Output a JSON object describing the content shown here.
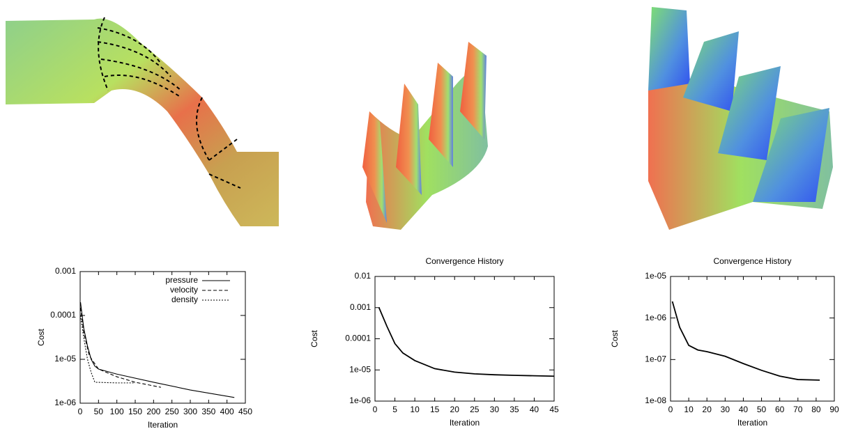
{
  "chart_data": [
    {
      "type": "line",
      "xlabel": "Iteration",
      "ylabel": "Cost",
      "log_y": true,
      "xlim": [
        0,
        450
      ],
      "xticks": [
        0,
        50,
        100,
        150,
        200,
        250,
        300,
        350,
        400,
        450
      ],
      "ylim": [
        1e-06,
        0.001
      ],
      "yticks": [
        {
          "value": 1e-06,
          "label": "1e-06"
        },
        {
          "value": 1e-05,
          "label": "1e-05"
        },
        0.0001,
        0.001
      ],
      "legend": "top-right",
      "series": [
        {
          "name": "pressure",
          "color": "#000000",
          "dash": "solid",
          "x": [
            1,
            10,
            20,
            30,
            40,
            50,
            100,
            200,
            300,
            420
          ],
          "values": [
            0.0002,
            5e-05,
            2e-05,
            1e-05,
            7e-06,
            6e-06,
            4.6e-06,
            3e-06,
            2e-06,
            1.35e-06
          ]
        },
        {
          "name": "velocity",
          "color": "#000000",
          "dash": "dashed",
          "x": [
            1,
            10,
            25,
            50,
            100,
            150,
            220
          ],
          "values": [
            0.00015,
            4e-05,
            1.2e-05,
            6e-06,
            4e-06,
            3e-06,
            2.3e-06
          ]
        },
        {
          "name": "density",
          "color": "#000000",
          "dash": "dotted",
          "x": [
            1,
            10,
            20,
            30,
            40,
            100,
            150
          ],
          "values": [
            0.0001,
            3e-05,
            1e-05,
            5e-06,
            3e-06,
            2.9e-06,
            2.9e-06
          ]
        }
      ]
    },
    {
      "type": "line",
      "title": "Convergence History",
      "xlabel": "Iteration",
      "ylabel": "Cost",
      "log_y": true,
      "xlim": [
        0,
        45
      ],
      "xticks": [
        0,
        5,
        10,
        15,
        20,
        25,
        30,
        35,
        40,
        45
      ],
      "ylim": [
        1e-06,
        0.01
      ],
      "yticks": [
        {
          "value": 1e-06,
          "label": "1e-06"
        },
        {
          "value": 1e-05,
          "label": "1e-05"
        },
        0.0001,
        0.001,
        0.01
      ],
      "series": [
        {
          "color": "#000000",
          "dash": "solid",
          "x": [
            1,
            3,
            5,
            7,
            10,
            15,
            20,
            25,
            30,
            35,
            40,
            45
          ],
          "values": [
            0.001,
            0.00025,
            7e-05,
            3.5e-05,
            2e-05,
            1.1e-05,
            8.5e-06,
            7.5e-06,
            7e-06,
            6.7e-06,
            6.5e-06,
            6.3e-06
          ]
        }
      ]
    },
    {
      "type": "line",
      "title": "Convergence History",
      "xlabel": "Iteration",
      "ylabel": "Cost",
      "log_y": true,
      "xlim": [
        0,
        90
      ],
      "xticks": [
        0,
        10,
        20,
        30,
        40,
        50,
        60,
        70,
        80,
        90
      ],
      "ylim": [
        1e-08,
        1e-05
      ],
      "yticks": [
        {
          "value": 1e-08,
          "label": "1e-08"
        },
        {
          "value": 1e-07,
          "label": "1e-07"
        },
        {
          "value": 1e-06,
          "label": "1e-06"
        },
        {
          "value": 1e-05,
          "label": "1e-05"
        }
      ],
      "series": [
        {
          "color": "#000000",
          "dash": "solid",
          "x": [
            1,
            5,
            10,
            15,
            20,
            30,
            40,
            50,
            60,
            70,
            82
          ],
          "values": [
            2.5e-06,
            6e-07,
            2.2e-07,
            1.7e-07,
            1.55e-07,
            1.2e-07,
            8e-08,
            5.5e-08,
            4e-08,
            3.3e-08,
            3.2e-08
          ]
        }
      ]
    }
  ]
}
